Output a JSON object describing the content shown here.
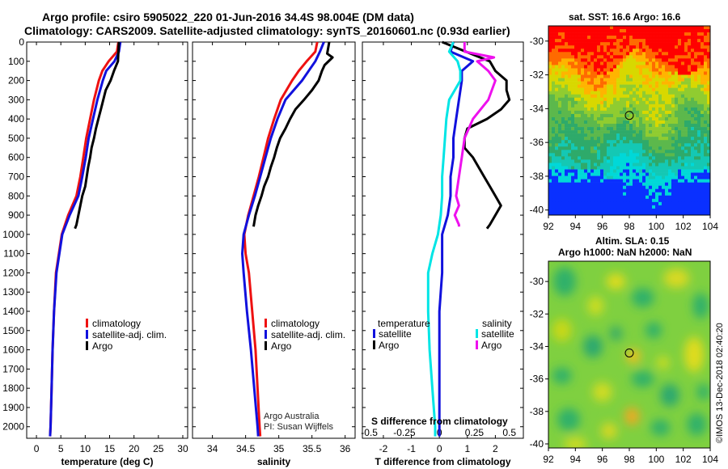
{
  "header": {
    "title_line1": "Argo profile: csiro 5905022_220 01-Jun-2016 34.4S 98.004E (DM data)",
    "title_line2": "Climatology: CARS2009. Satellite-adjusted climatology: synTS_20160601.nc (0.93d earlier)"
  },
  "maps": {
    "sst_title": "sat. SST: 16.6 Argo: 16.6",
    "sla_title_line1": "Altim. SLA: 0.15",
    "sla_title_line2": "Argo h1000: NaN h2000: NaN",
    "lat_ticks": [
      -30,
      -32,
      -34,
      -36,
      -38,
      -40
    ],
    "lon_ticks": [
      92,
      94,
      96,
      98,
      100,
      102,
      104
    ],
    "profile_marker": {
      "lon": 98.0,
      "lat": -34.4
    }
  },
  "credit": {
    "line1": "Argo Australia",
    "line2": "PI: Susan Wijffels"
  },
  "imos_stamp": "©IMOS 13-Dec-2018 02:40:20",
  "colors": {
    "climatology": "#ee1111",
    "satellite": "#1111dd",
    "argo": "#000000",
    "salinity_satellite": "#00e5e5",
    "salinity_argo": "#ee11ee"
  },
  "chart_data": [
    {
      "type": "line",
      "panel": "temperature",
      "xlabel": "temperature (deg C)",
      "xlim": [
        -2,
        31
      ],
      "xticks": [
        0,
        5,
        10,
        15,
        20,
        25,
        30
      ],
      "ylim": [
        0,
        2060
      ],
      "yticks": [
        0,
        100,
        200,
        300,
        400,
        500,
        600,
        700,
        800,
        900,
        1000,
        1100,
        1200,
        1300,
        1400,
        1500,
        1600,
        1700,
        1800,
        1900,
        2000
      ],
      "legend": [
        "climatology",
        "satellite-adj. clim.",
        "Argo"
      ],
      "series": [
        {
          "name": "climatology",
          "depth": [
            0,
            50,
            100,
            150,
            200,
            300,
            400,
            500,
            600,
            700,
            800,
            900,
            1000,
            1100,
            1200,
            1400,
            1600,
            1800,
            2000,
            2050
          ],
          "values": [
            16.8,
            16.5,
            14.8,
            13.5,
            12.8,
            11.8,
            11.0,
            10.2,
            9.6,
            9.0,
            8.2,
            6.5,
            5.2,
            4.6,
            4.0,
            3.6,
            3.3,
            3.1,
            2.9,
            2.8
          ]
        },
        {
          "name": "satellite-adj. clim.",
          "depth": [
            0,
            50,
            100,
            150,
            200,
            300,
            400,
            500,
            600,
            700,
            800,
            900,
            1000,
            1100,
            1200,
            1400,
            1600,
            1800,
            2000,
            2050
          ],
          "values": [
            17.2,
            16.9,
            16.0,
            14.3,
            13.6,
            12.5,
            11.6,
            10.7,
            10.1,
            9.4,
            8.6,
            6.8,
            5.3,
            4.7,
            4.1,
            3.6,
            3.3,
            3.1,
            2.9,
            2.8
          ]
        },
        {
          "name": "Argo",
          "depth": [
            0,
            100,
            150,
            200,
            250,
            300,
            350,
            400,
            450,
            500,
            550,
            600,
            650,
            700,
            750,
            800,
            850,
            900,
            950,
            970
          ],
          "values": [
            16.9,
            16.7,
            15.9,
            15.2,
            14.2,
            13.7,
            13.2,
            12.7,
            12.2,
            11.8,
            11.3,
            11.0,
            10.6,
            10.3,
            10.0,
            9.4,
            9.0,
            8.6,
            8.2,
            7.9
          ]
        }
      ]
    },
    {
      "type": "line",
      "panel": "salinity",
      "xlabel": "salinity",
      "xlim": [
        33.7,
        36.15
      ],
      "xticks": [
        34,
        34.5,
        35,
        35.5,
        36
      ],
      "ylim": [
        0,
        2060
      ],
      "legend": [
        "climatology",
        "satellite-adj. clim.",
        "Argo"
      ],
      "series": [
        {
          "name": "climatology",
          "depth": [
            0,
            50,
            100,
            150,
            200,
            300,
            400,
            500,
            600,
            700,
            800,
            900,
            1000,
            1100,
            1200,
            1400,
            1600,
            1800,
            2000,
            2050
          ],
          "values": [
            35.58,
            35.55,
            35.42,
            35.3,
            35.2,
            35.03,
            34.93,
            34.84,
            34.77,
            34.7,
            34.62,
            34.54,
            34.48,
            34.5,
            34.55,
            34.6,
            34.65,
            34.68,
            34.71,
            34.72
          ]
        },
        {
          "name": "satellite-adj. clim.",
          "depth": [
            0,
            50,
            100,
            150,
            200,
            300,
            400,
            500,
            600,
            700,
            800,
            900,
            1000,
            1100,
            1200,
            1400,
            1600,
            1800,
            2000,
            2050
          ],
          "values": [
            35.68,
            35.62,
            35.55,
            35.45,
            35.35,
            35.1,
            34.98,
            34.88,
            34.8,
            34.72,
            34.64,
            34.55,
            34.47,
            34.45,
            34.47,
            34.52,
            34.58,
            34.63,
            34.68,
            34.69
          ]
        },
        {
          "name": "Argo",
          "depth": [
            0,
            60,
            80,
            120,
            150,
            200,
            250,
            300,
            350,
            400,
            450,
            500,
            550,
            600,
            650,
            700,
            750,
            800,
            850,
            900,
            960
          ],
          "values": [
            35.76,
            35.73,
            35.81,
            35.69,
            35.65,
            35.6,
            35.5,
            35.38,
            35.25,
            35.17,
            35.1,
            35.02,
            34.97,
            34.93,
            34.88,
            34.84,
            34.78,
            34.74,
            34.69,
            34.65,
            34.62
          ]
        }
      ]
    },
    {
      "type": "line",
      "panel": "difference",
      "xlabel": "T difference from climatology",
      "xlabel_top": "S difference from climatology",
      "xlim": [
        -2.75,
        3.0
      ],
      "xticks": [
        -2,
        -1,
        0,
        1,
        2
      ],
      "xlim_salinity": [
        -0.55,
        0.6
      ],
      "xticks_salinity": [
        -0.5,
        -0.25,
        0,
        0.25,
        0.5
      ],
      "xticklabels_salinity": [
        "-0.5",
        "-0.25",
        "0",
        "0.25",
        "0.5"
      ],
      "ylim": [
        0,
        2060
      ],
      "legend_temperature_title": "temperature",
      "legend_salinity_title": "salinity",
      "legend": [
        "satellite",
        "Argo"
      ],
      "series": [
        {
          "name": "temperature satellite",
          "quantity": "T",
          "depth": [
            0,
            50,
            100,
            150,
            200,
            300,
            400,
            500,
            600,
            700,
            800,
            900,
            1000,
            1100,
            1200,
            1400,
            1600,
            1800,
            2000,
            2050
          ],
          "values": [
            0.5,
            0.4,
            1.2,
            0.8,
            0.8,
            0.7,
            0.6,
            0.5,
            0.5,
            0.4,
            0.4,
            0.3,
            0.1,
            0.1,
            0.1,
            0.0,
            0.0,
            0.0,
            0.0,
            0.0
          ]
        },
        {
          "name": "temperature Argo",
          "quantity": "T",
          "depth": [
            0,
            100,
            150,
            200,
            250,
            300,
            350,
            400,
            450,
            500,
            550,
            600,
            650,
            700,
            750,
            800,
            850,
            900,
            950,
            970
          ],
          "values": [
            0.1,
            1.8,
            2.0,
            2.4,
            2.4,
            2.5,
            2.2,
            1.7,
            1.0,
            0.9,
            0.9,
            1.2,
            1.4,
            1.6,
            1.8,
            2.0,
            2.2,
            2.0,
            1.8,
            1.7
          ]
        },
        {
          "name": "salinity satellite",
          "quantity": "S",
          "depth": [
            0,
            50,
            100,
            150,
            200,
            300,
            400,
            500,
            600,
            700,
            800,
            900,
            1000,
            1100,
            1200,
            1400,
            1600,
            1800,
            2000,
            2050
          ],
          "values": [
            0.1,
            0.07,
            0.13,
            0.15,
            0.15,
            0.07,
            0.05,
            0.04,
            0.03,
            0.02,
            0.02,
            0.01,
            -0.01,
            -0.05,
            -0.08,
            -0.08,
            -0.07,
            -0.05,
            -0.03,
            -0.03
          ]
        },
        {
          "name": "salinity Argo",
          "quantity": "S",
          "depth": [
            0,
            50,
            80,
            100,
            150,
            200,
            300,
            400,
            500,
            600,
            700,
            800,
            850,
            900,
            950,
            960
          ],
          "values": [
            0.18,
            0.18,
            0.39,
            0.27,
            0.35,
            0.4,
            0.35,
            0.24,
            0.18,
            0.16,
            0.14,
            0.12,
            0.14,
            0.11,
            0.14,
            0.14
          ]
        }
      ]
    }
  ]
}
